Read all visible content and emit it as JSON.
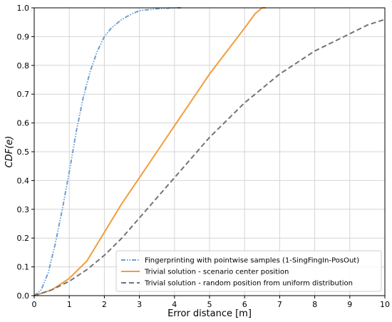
{
  "chart_data": {
    "type": "line",
    "title": "",
    "xlabel": "Error distance [m]",
    "ylabel": "CDF(e)",
    "xlim": [
      0,
      10
    ],
    "ylim": [
      0,
      1.0
    ],
    "xticks": [
      "0",
      "1",
      "2",
      "3",
      "4",
      "5",
      "6",
      "7",
      "8",
      "9",
      "10"
    ],
    "yticks": [
      "0.0",
      "0.1",
      "0.2",
      "0.3",
      "0.4",
      "0.5",
      "0.6",
      "0.7",
      "0.8",
      "0.9",
      "1.0"
    ],
    "grid": true,
    "legend_position": "bottom-right",
    "series": [
      {
        "name": "Fingerprinting with pointwise samples (1-SingFingIn-PosOut)",
        "color": "#6f9ed2",
        "dash": "dash-dot-dot",
        "x": [
          0,
          0.2,
          0.4,
          0.6,
          0.8,
          1.0,
          1.2,
          1.4,
          1.6,
          1.8,
          2.0,
          2.2,
          2.5,
          2.8,
          3.0,
          3.5,
          4.0,
          4.2
        ],
        "y": [
          0,
          0.02,
          0.08,
          0.18,
          0.3,
          0.43,
          0.57,
          0.69,
          0.78,
          0.85,
          0.9,
          0.93,
          0.96,
          0.98,
          0.99,
          0.997,
          1.0,
          1.0
        ]
      },
      {
        "name": "Trivial solution - scenario center position",
        "color": "#f39c3a",
        "dash": "solid",
        "x": [
          0,
          0.5,
          1.0,
          1.5,
          2.0,
          2.5,
          3.0,
          3.5,
          4.0,
          4.5,
          5.0,
          5.5,
          6.0,
          6.3,
          6.5,
          6.6
        ],
        "y": [
          0,
          0.02,
          0.06,
          0.12,
          0.22,
          0.32,
          0.41,
          0.5,
          0.59,
          0.68,
          0.77,
          0.85,
          0.93,
          0.98,
          1.0,
          1.0
        ]
      },
      {
        "name": "Trivial solution - random position from uniform distribution",
        "color": "#737373",
        "dash": "dashed",
        "x": [
          0,
          0.5,
          1.0,
          1.5,
          2.0,
          2.5,
          3.0,
          3.5,
          4.0,
          4.5,
          5.0,
          5.5,
          6.0,
          6.5,
          7.0,
          7.5,
          8.0,
          8.5,
          9.0,
          9.5,
          10.0
        ],
        "y": [
          0,
          0.02,
          0.05,
          0.09,
          0.14,
          0.2,
          0.27,
          0.34,
          0.41,
          0.48,
          0.55,
          0.61,
          0.67,
          0.72,
          0.77,
          0.81,
          0.85,
          0.88,
          0.91,
          0.94,
          0.96
        ]
      }
    ]
  }
}
